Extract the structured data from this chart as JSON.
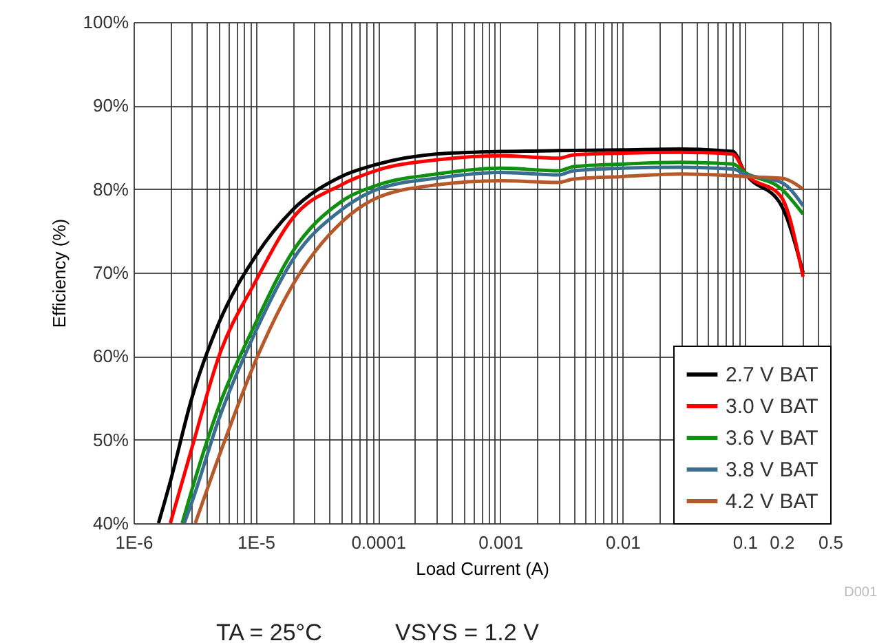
{
  "chart_data": {
    "type": "line",
    "xlabel": "Load Current (A)",
    "ylabel": "Efficiency (%)",
    "log": "x",
    "grid": true,
    "legend": "bottom right",
    "line_style": "solid",
    "marker": "none",
    "xlim": [
      1e-06,
      0.5
    ],
    "ylim": [
      40,
      100
    ],
    "xticks": [
      {
        "value": 1e-06,
        "label": "1E-6"
      },
      {
        "value": 2e-06,
        "label": null
      },
      {
        "value": 3e-06,
        "label": null
      },
      {
        "value": 4e-06,
        "label": null
      },
      {
        "value": 5e-06,
        "label": null
      },
      {
        "value": 6e-06,
        "label": null
      },
      {
        "value": 7e-06,
        "label": null
      },
      {
        "value": 8e-06,
        "label": null
      },
      {
        "value": 9e-06,
        "label": null
      },
      {
        "value": 1e-05,
        "label": "1E-5"
      },
      {
        "value": 2e-05,
        "label": null
      },
      {
        "value": 3e-05,
        "label": null
      },
      {
        "value": 4e-05,
        "label": null
      },
      {
        "value": 5e-05,
        "label": null
      },
      {
        "value": 6e-05,
        "label": null
      },
      {
        "value": 7e-05,
        "label": null
      },
      {
        "value": 8e-05,
        "label": null
      },
      {
        "value": 9e-05,
        "label": null
      },
      0.0001,
      {
        "value": 0.0002,
        "label": null
      },
      {
        "value": 0.0003,
        "label": null
      },
      {
        "value": 0.0004,
        "label": null
      },
      {
        "value": 0.0005,
        "label": null
      },
      {
        "value": 0.0006,
        "label": null
      },
      {
        "value": 0.0007,
        "label": null
      },
      {
        "value": 0.0008,
        "label": null
      },
      {
        "value": 0.0009,
        "label": null
      },
      0.001,
      {
        "value": 0.002,
        "label": null
      },
      {
        "value": 0.003,
        "label": null
      },
      {
        "value": 0.004,
        "label": null
      },
      {
        "value": 0.005,
        "label": null
      },
      {
        "value": 0.006,
        "label": null
      },
      {
        "value": 0.007,
        "label": null
      },
      {
        "value": 0.008,
        "label": null
      },
      {
        "value": 0.009,
        "label": null
      },
      0.01,
      {
        "value": 0.02,
        "label": null
      },
      {
        "value": 0.03,
        "label": null
      },
      {
        "value": 0.04,
        "label": null
      },
      {
        "value": 0.05,
        "label": null
      },
      {
        "value": 0.06,
        "label": null
      },
      {
        "value": 0.07,
        "label": null
      },
      {
        "value": 0.08,
        "label": null
      },
      {
        "value": 0.09,
        "label": null
      },
      0.1,
      0.2,
      {
        "value": 0.3,
        "label": null
      },
      {
        "value": 0.4,
        "label": null
      },
      0.5
    ],
    "yticks": [
      {
        "value": 40,
        "label": "40%"
      },
      {
        "value": 50,
        "label": "50%"
      },
      {
        "value": 60,
        "label": "60%"
      },
      {
        "value": 70,
        "label": "70%"
      },
      {
        "value": 80,
        "label": "80%"
      },
      {
        "value": 90,
        "label": "90%"
      },
      {
        "value": 100,
        "label": "100%"
      }
    ],
    "series": [
      {
        "name": "2.7 V BAT",
        "color": "#000000",
        "x": [
          1.6e-06,
          2e-06,
          3e-06,
          5e-06,
          1e-05,
          2e-05,
          5e-05,
          0.0001,
          0.0003,
          0.001,
          0.003,
          0.01,
          0.03,
          0.08,
          0.1,
          0.2,
          0.3
        ],
        "values": [
          40,
          45,
          55,
          64,
          72,
          77.5,
          81.5,
          83,
          84.2,
          84.5,
          84.6,
          84.7,
          84.8,
          84.5,
          82,
          78,
          70
        ]
      },
      {
        "name": "3.0 V BAT",
        "color": "#ff0000",
        "x": [
          2e-06,
          3e-06,
          5e-06,
          1e-05,
          2e-05,
          5e-05,
          0.0001,
          0.0003,
          0.001,
          0.003,
          0.004,
          0.01,
          0.03,
          0.08,
          0.1,
          0.2,
          0.3
        ],
        "values": [
          40,
          49,
          60,
          69,
          76.5,
          80.5,
          82.3,
          83.5,
          84,
          83.7,
          84.1,
          84.3,
          84.4,
          84.2,
          82,
          79,
          69.5
        ]
      },
      {
        "name": "3.6 V BAT",
        "color": "#109010",
        "x": [
          2.5e-06,
          3e-06,
          5e-06,
          1e-05,
          2e-05,
          5e-05,
          0.0001,
          0.0003,
          0.001,
          0.003,
          0.004,
          0.01,
          0.03,
          0.08,
          0.1,
          0.2,
          0.3
        ],
        "values": [
          40,
          44,
          54,
          64,
          72.5,
          78.5,
          80.5,
          81.8,
          82.5,
          82.2,
          82.7,
          83,
          83.2,
          83,
          82,
          80,
          77
        ]
      },
      {
        "name": "3.8 V BAT",
        "color": "#3a6e8f",
        "x": [
          2.6e-06,
          3e-06,
          5e-06,
          1e-05,
          2e-05,
          5e-05,
          0.0001,
          0.0003,
          0.001,
          0.003,
          0.004,
          0.01,
          0.03,
          0.08,
          0.1,
          0.2,
          0.3
        ],
        "values": [
          40,
          42.5,
          52.5,
          63,
          71.5,
          77.5,
          80,
          81.3,
          82,
          81.7,
          82.2,
          82.5,
          82.6,
          82.4,
          81.8,
          80.8,
          78
        ]
      },
      {
        "name": "4.2 V BAT",
        "color": "#b5592a",
        "x": [
          3.2e-06,
          5e-06,
          1e-05,
          2e-05,
          5e-05,
          0.0001,
          0.0003,
          0.001,
          0.003,
          0.004,
          0.01,
          0.03,
          0.08,
          0.1,
          0.2,
          0.3
        ],
        "values": [
          40,
          48,
          59.5,
          68.5,
          76,
          79,
          80.5,
          81,
          80.8,
          81.2,
          81.5,
          81.8,
          81.6,
          81.5,
          81.3,
          80
        ]
      }
    ],
    "annotations": [
      "D001",
      "TA = 25°C",
      "VSYS = 1.2 V"
    ]
  }
}
